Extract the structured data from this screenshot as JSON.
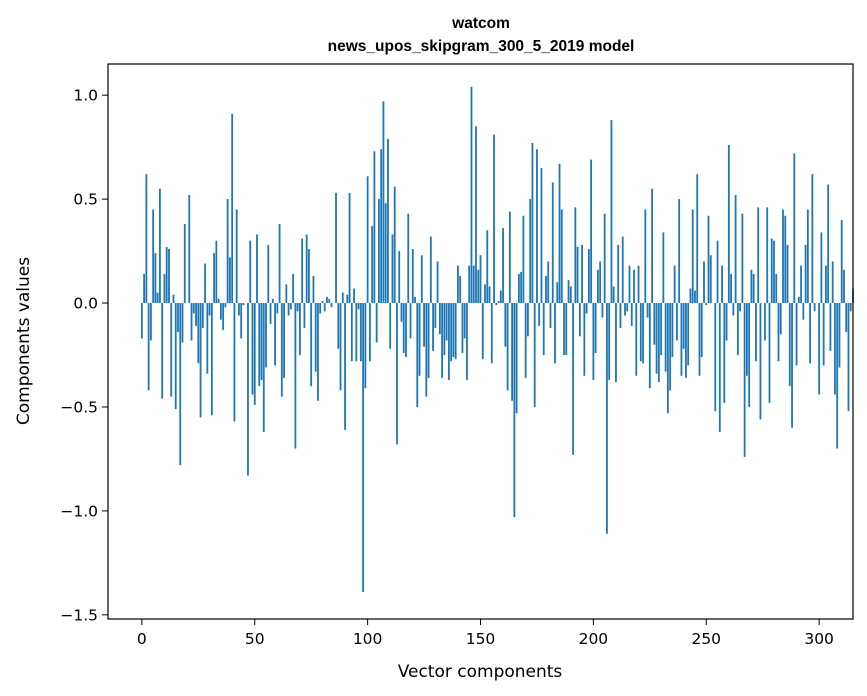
{
  "chart_data": {
    "type": "bar",
    "title": "watcom",
    "subtitle": "news_upos_skipgram_300_5_2019 model",
    "xlabel": "Vector components",
    "ylabel": "Components values",
    "xlim": [
      -15,
      315
    ],
    "ylim": [
      -1.52,
      1.15
    ],
    "xticks": [
      0,
      50,
      100,
      150,
      200,
      250,
      300
    ],
    "xtick_labels": [
      "0",
      "50",
      "100",
      "150",
      "200",
      "250",
      "300"
    ],
    "yticks": [
      1.0,
      0.5,
      0.0,
      -0.5,
      -1.0,
      -1.5
    ],
    "ytick_labels": [
      "1.0",
      "0.5",
      "0.0",
      "−0.5",
      "−1.0",
      "−1.5"
    ],
    "bar_color": "#1f77b4",
    "grid": false,
    "values": [
      -0.17,
      0.14,
      0.62,
      -0.42,
      -0.18,
      0.45,
      0.24,
      0.05,
      0.55,
      -0.46,
      0.14,
      0.27,
      0.26,
      -0.45,
      0.04,
      -0.51,
      -0.14,
      -0.78,
      -0.19,
      0.38,
      0.0,
      0.52,
      -0.18,
      -0.05,
      -0.11,
      -0.29,
      -0.55,
      -0.12,
      0.19,
      -0.34,
      -0.06,
      -0.54,
      0.24,
      0.3,
      0.02,
      -0.08,
      -0.13,
      -0.02,
      0.5,
      0.22,
      0.91,
      -0.57,
      0.45,
      -0.06,
      -0.17,
      -0.01,
      0.0,
      -0.83,
      0.3,
      -0.44,
      -0.49,
      0.33,
      -0.4,
      -0.37,
      -0.62,
      -0.31,
      0.28,
      -0.1,
      0.02,
      -0.3,
      -0.05,
      0.38,
      -0.45,
      -0.36,
      0.09,
      -0.06,
      -0.03,
      0.14,
      -0.7,
      -0.04,
      -0.25,
      0.31,
      -0.12,
      0.33,
      0.26,
      -0.4,
      0.13,
      -0.33,
      -0.47,
      -0.05,
      0.01,
      -0.04,
      0.03,
      0.02,
      -0.02,
      0.0,
      0.53,
      -0.22,
      -0.42,
      0.05,
      -0.61,
      0.04,
      0.53,
      -0.28,
      0.07,
      -0.28,
      -0.03,
      -0.28,
      -1.39,
      -0.41,
      0.61,
      -0.28,
      0.37,
      0.73,
      -0.19,
      0.5,
      0.74,
      0.97,
      0.48,
      0.79,
      -0.22,
      0.33,
      0.56,
      -0.68,
      0.25,
      -0.09,
      -0.24,
      -0.26,
      0.43,
      -0.17,
      0.26,
      0.03,
      -0.5,
      -0.35,
      0.23,
      -0.21,
      -0.45,
      -0.36,
      0.32,
      -0.23,
      -0.12,
      0.2,
      -0.15,
      -0.36,
      -0.25,
      -0.18,
      -0.37,
      -0.28,
      -0.26,
      -0.27,
      0.18,
      0.13,
      -0.24,
      -0.17,
      -0.37,
      0.18,
      1.04,
      0.18,
      0.85,
      0.16,
      0.23,
      -0.27,
      0.09,
      0.35,
      0.08,
      -0.29,
      0.81,
      -0.01,
      0.01,
      0.06,
      0.36,
      -0.21,
      -0.42,
      0.44,
      -0.47,
      -1.03,
      -0.53,
      0.14,
      0.15,
      0.42,
      -0.36,
      -0.16,
      0.5,
      0.77,
      -0.5,
      0.74,
      -0.11,
      0.65,
      -0.25,
      0.13,
      0.2,
      -0.12,
      0.58,
      -0.29,
      0.1,
      0.67,
      0.45,
      -0.25,
      -0.25,
      0.11,
      0.08,
      -0.73,
      0.46,
      0.27,
      -0.16,
      0.28,
      -0.35,
      -0.05,
      0.26,
      0.69,
      -0.37,
      -0.24,
      0.16,
      0.2,
      -0.07,
      0.43,
      -1.11,
      -0.37,
      0.88,
      0.08,
      -0.38,
      0.28,
      -0.12,
      0.32,
      -0.06,
      -0.04,
      0.18,
      -0.11,
      0.16,
      -0.35,
      0.18,
      -0.28,
      -0.29,
      0.45,
      -0.07,
      -0.41,
      0.55,
      -0.2,
      -0.34,
      -0.38,
      -0.25,
      0.34,
      -0.33,
      -0.53,
      -0.42,
      -0.26,
      0.18,
      -0.18,
      0.5,
      -0.35,
      -0.22,
      -0.36,
      -0.3,
      0.07,
      0.45,
      0.06,
      0.62,
      -0.35,
      -0.26,
      0.2,
      -0.01,
      0.42,
      0.23,
      0.0,
      -0.52,
      0.3,
      -0.62,
      0.18,
      -0.48,
      -0.18,
      0.76,
      0.14,
      -0.06,
      0.52,
      -0.25,
      -0.04,
      0.43,
      -0.74,
      -0.35,
      -0.5,
      0.16,
      0.14,
      -0.28,
      0.46,
      -0.56,
      0.0,
      -0.18,
      0.46,
      -0.48,
      0.31,
      0.3,
      0.14,
      -0.28,
      -0.15,
      0.45,
      0.42,
      0.28,
      -0.4,
      -0.6,
      0.72,
      -0.3,
      0.03,
      0.18,
      -0.08,
      0.28,
      0.45,
      -0.29,
      0.62,
      -0.04,
      0.0,
      -0.44,
      0.34,
      -0.3,
      0.18,
      0.57,
      -0.23,
      0.2,
      -0.44,
      -0.7,
      -0.31,
      0.4,
      0.16,
      -0.14,
      -0.52,
      -0.04,
      0.07
    ]
  }
}
